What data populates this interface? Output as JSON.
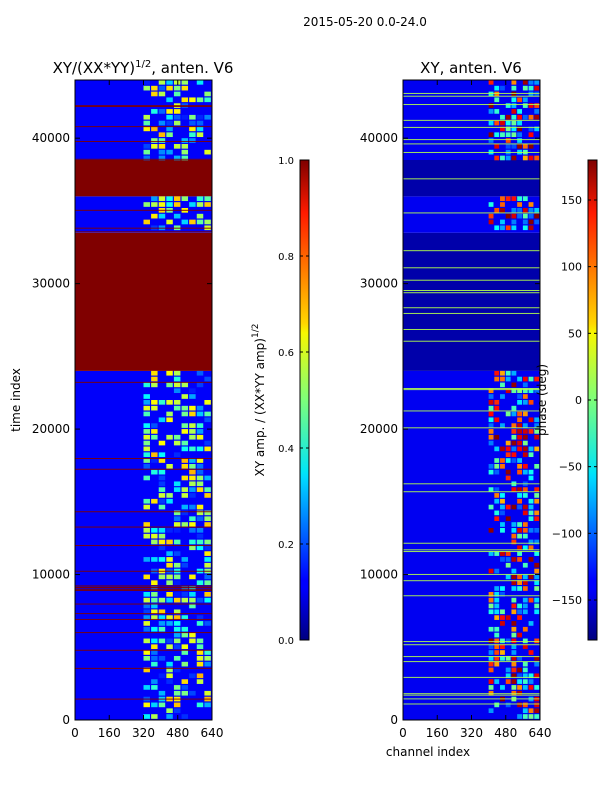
{
  "figure_title": "2015-05-20 0.0-24.0",
  "chart_data": [
    {
      "type": "heatmap",
      "title": "XY/(XX*YY)^1/2, anten. V6",
      "title_main": "XY/(XX*YY)",
      "title_sup": "1/2",
      "title_suffix": ", anten. V6",
      "xlabel": "",
      "ylabel": "time index",
      "xlim": [
        0,
        640
      ],
      "ylim": [
        0,
        44000
      ],
      "x_ticks": [
        0,
        160,
        320,
        480,
        640
      ],
      "y_ticks": [
        0,
        10000,
        20000,
        30000,
        40000
      ],
      "colorbar": {
        "label": "XY amp. / (XX*YY amp)^1/2",
        "label_main": "XY amp. / (XX*YY amp)",
        "label_sup": "1/2",
        "range": [
          0.0,
          1.0
        ],
        "ticks": [
          "0.0",
          "0.2",
          "0.4",
          "0.6",
          "0.8",
          "1.0"
        ],
        "tick_values": [
          0.0,
          0.2,
          0.4,
          0.6,
          0.8,
          1.0
        ]
      },
      "bands": [
        {
          "t0": 0,
          "t1": 24000,
          "value": 0.12
        },
        {
          "t0": 24000,
          "t1": 33500,
          "value": 1.0
        },
        {
          "t0": 33500,
          "t1": 36000,
          "value": 0.12
        },
        {
          "t0": 36000,
          "t1": 38500,
          "value": 1.0
        },
        {
          "t0": 38500,
          "t1": 44000,
          "value": 0.12
        }
      ],
      "active_channels": [
        320,
        640
      ]
    },
    {
      "type": "heatmap",
      "title": "XY, anten. V6",
      "xlabel": "channel index",
      "ylabel": "",
      "xlim": [
        0,
        640
      ],
      "ylim": [
        0,
        44000
      ],
      "x_ticks": [
        0,
        160,
        320,
        480,
        640
      ],
      "y_ticks": [
        0,
        10000,
        20000,
        30000,
        40000
      ],
      "colorbar": {
        "label": "phase (deg)",
        "range": [
          -180,
          180
        ],
        "ticks": [
          "−150",
          "−100",
          "−50",
          "0",
          "50",
          "100",
          "150"
        ],
        "tick_values": [
          -150,
          -100,
          -50,
          0,
          50,
          100,
          150
        ]
      },
      "bands": [
        {
          "t0": 0,
          "t1": 24000,
          "value": -140
        },
        {
          "t0": 24000,
          "t1": 33500,
          "value": -165
        },
        {
          "t0": 33500,
          "t1": 36000,
          "value": -140
        },
        {
          "t0": 36000,
          "t1": 38500,
          "value": -165
        },
        {
          "t0": 38500,
          "t1": 44000,
          "value": -140
        }
      ],
      "active_channels": [
        400,
        640
      ]
    }
  ]
}
